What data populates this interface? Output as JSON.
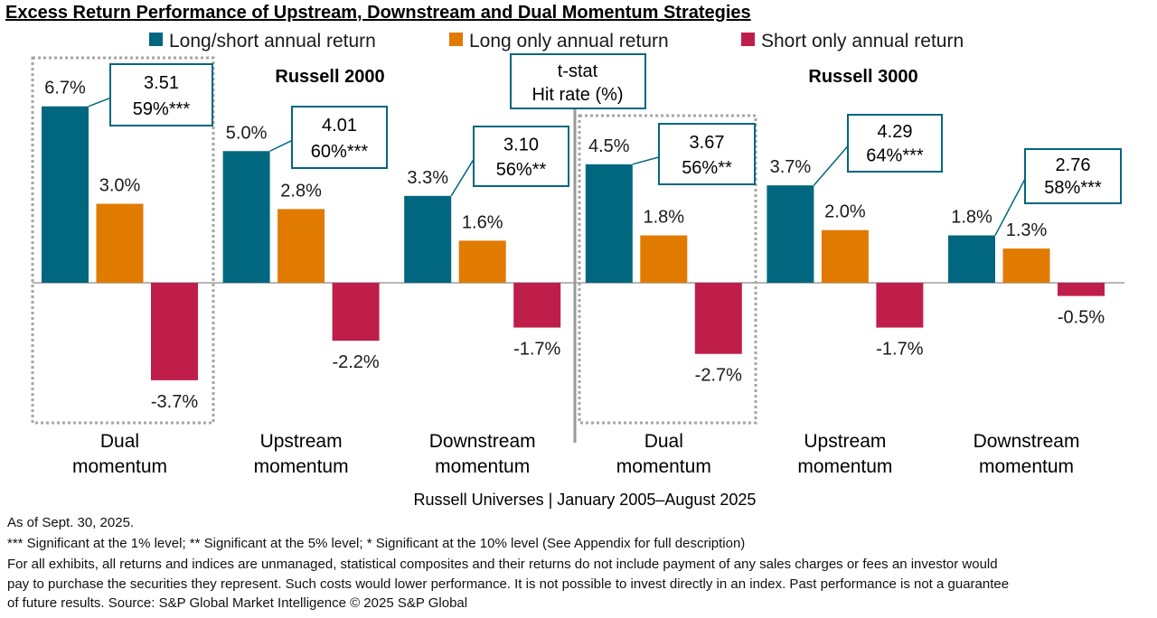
{
  "chart_data": {
    "type": "bar",
    "title": "Excess Return Performance of Upstream, Downstream and Dual Momentum Strategies",
    "xlabel": "Russell Universes | January 2005–August 2025",
    "ylabel": "",
    "ylim": [
      -4.5,
      8.5
    ],
    "grid": false,
    "legend_placement": "top",
    "panels": [
      "Russell 2000",
      "Russell 3000"
    ],
    "annotation_legend": [
      "t-stat",
      "Hit rate (%)"
    ],
    "categories": [
      [
        "Dual",
        "momentum"
      ],
      [
        "Upstream",
        "momentum"
      ],
      [
        "Downstream",
        "momentum"
      ],
      [
        "Dual",
        "momentum"
      ],
      [
        "Upstream",
        "momentum"
      ],
      [
        "Downstream",
        "momentum"
      ]
    ],
    "series": [
      {
        "name": "Long/short annual return",
        "color": "#00677f",
        "values": [
          6.7,
          5.0,
          3.3,
          4.5,
          3.7,
          1.8
        ],
        "labels": [
          "6.7%",
          "5.0%",
          "3.3%",
          "4.5%",
          "3.7%",
          "1.8%"
        ]
      },
      {
        "name": "Long only annual return",
        "color": "#e07b00",
        "values": [
          3.0,
          2.8,
          1.6,
          1.8,
          2.0,
          1.3
        ],
        "labels": [
          "3.0%",
          "2.8%",
          "1.6%",
          "1.8%",
          "2.0%",
          "1.3%"
        ]
      },
      {
        "name": "Short only annual return",
        "color": "#bf1e4b",
        "values": [
          -3.7,
          -2.2,
          -1.7,
          -2.7,
          -1.7,
          -0.5
        ],
        "labels": [
          "-3.7%",
          "-2.2%",
          "-1.7%",
          "-2.7%",
          "-1.7%",
          "-0.5%"
        ]
      }
    ],
    "annotations": [
      {
        "tstat": "3.51",
        "hit": "59%***"
      },
      {
        "tstat": "4.01",
        "hit": "60%***"
      },
      {
        "tstat": "3.10",
        "hit": "56%**"
      },
      {
        "tstat": "3.67",
        "hit": "56%**"
      },
      {
        "tstat": "4.29",
        "hit": "64%***"
      },
      {
        "tstat": "2.76",
        "hit": "58%***"
      }
    ],
    "highlighted_categories": [
      0,
      3
    ]
  },
  "footnotes": [
    "As of Sept. 30, 2025.",
    "*** Significant at the 1% level; ** Significant at the 5% level; * Significant at the 10% level (See Appendix for full description)",
    "For all exhibits, all returns and indices are unmanaged, statistical composites and their returns do not include payment of any sales charges or fees an investor would",
    "pay to purchase the securities they represent. Such costs would lower performance. It is not possible to invest directly in an index. Past performance is not a guarantee",
    "of future results. Source: S&P Global Market Intelligence © 2025 S&P Global"
  ]
}
